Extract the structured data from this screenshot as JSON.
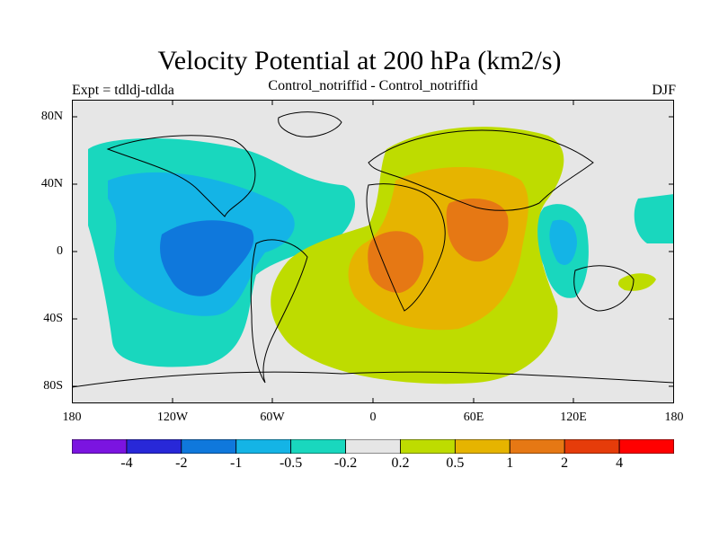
{
  "title": "Velocity Potential at 200 hPa (km2/s)",
  "left_label": "Expt = tdldj-tdlda",
  "center_label": "Control_notriffid - Control_notriffid",
  "right_label": "DJF",
  "lat_ticks": [
    "80N",
    "40N",
    "0",
    "40S",
    "80S"
  ],
  "lon_ticks": [
    "180",
    "120W",
    "60W",
    "0",
    "60E",
    "120E",
    "180"
  ],
  "colorbar": {
    "colors": [
      "#7b14e0",
      "#2828d8",
      "#0f78dc",
      "#14b4e6",
      "#19d7be",
      "#e6e6e6",
      "#bedc00",
      "#e6b400",
      "#e67814",
      "#e63c0a",
      "#ff0000"
    ],
    "labels": [
      "-4",
      "-2",
      "-1",
      "-0.5",
      "-0.2",
      "0.2",
      "0.5",
      "1",
      "2",
      "4"
    ]
  },
  "map_colors": {
    "background": "#e6e6e6",
    "coast": "#000000"
  }
}
